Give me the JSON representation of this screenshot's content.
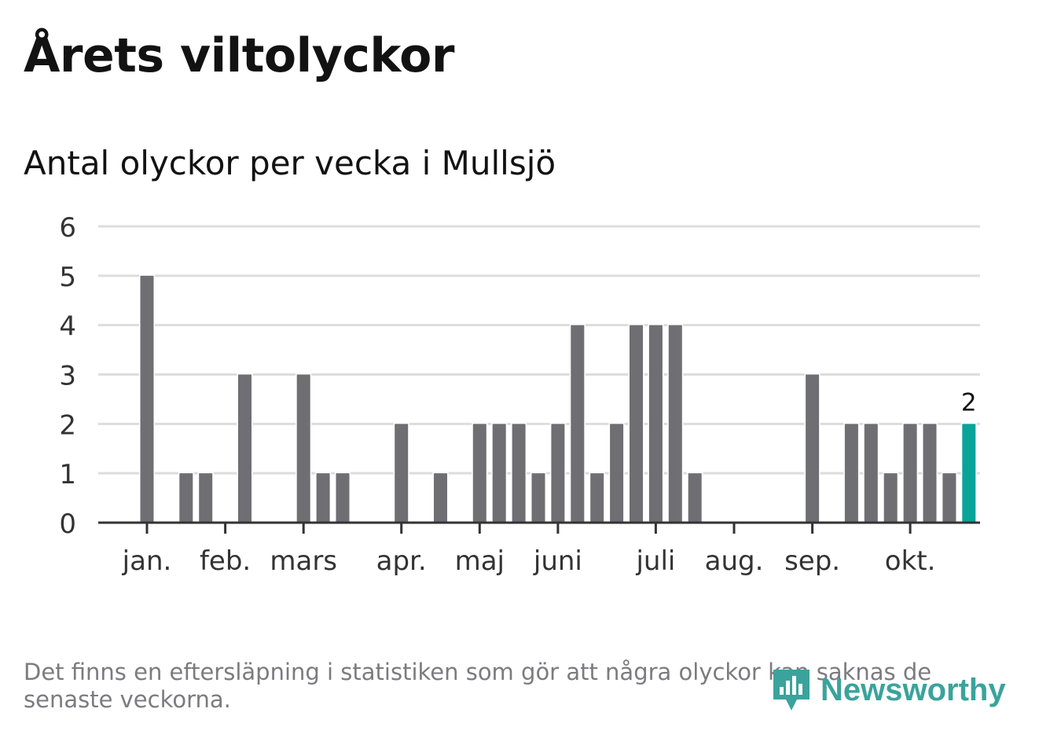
{
  "title": "Årets viltolyckor",
  "subtitle": "Antal olyckor per vecka i Mullsjö",
  "note": "Det finns en eftersläpning i statistiken som gör att några olyckor kan saknas de senaste veckorna.",
  "logo": {
    "text": "Newsworthy",
    "icon": "bar-chart-speech-bubble-icon",
    "color": "#3aa39c"
  },
  "colors": {
    "bar": "#6f6e73",
    "highlight": "#0aa39a",
    "grid": "#dddddd",
    "axis": "#333333"
  },
  "chart_data": {
    "type": "bar",
    "title": "Antal olyckor per vecka i Mullsjö",
    "ylim": [
      0,
      6
    ],
    "yticks": [
      "0",
      "1",
      "2",
      "3",
      "4",
      "5",
      "6"
    ],
    "grid": true,
    "weeks": [
      1,
      2,
      3,
      4,
      5,
      6,
      7,
      8,
      9,
      10,
      11,
      12,
      13,
      14,
      15,
      16,
      17,
      18,
      19,
      20,
      21,
      22,
      23,
      24,
      25,
      26,
      27,
      28,
      29,
      30,
      31,
      32,
      33,
      34,
      35,
      36,
      37,
      38,
      39,
      40,
      41,
      42,
      43
    ],
    "values": [
      5,
      0,
      1,
      1,
      0,
      3,
      0,
      0,
      3,
      1,
      1,
      0,
      0,
      2,
      0,
      1,
      0,
      2,
      2,
      2,
      1,
      2,
      4,
      1,
      2,
      4,
      4,
      4,
      1,
      0,
      0,
      0,
      0,
      0,
      3,
      0,
      2,
      2,
      1,
      2,
      2,
      1,
      2
    ],
    "highlight_index": 42,
    "highlight_label": "2",
    "month_labels": [
      {
        "label": "jan.",
        "week": 1
      },
      {
        "label": "feb.",
        "week": 5
      },
      {
        "label": "mars",
        "week": 9
      },
      {
        "label": "apr.",
        "week": 14
      },
      {
        "label": "maj",
        "week": 18
      },
      {
        "label": "juni",
        "week": 22
      },
      {
        "label": "juli",
        "week": 27
      },
      {
        "label": "aug.",
        "week": 31
      },
      {
        "label": "sep.",
        "week": 35
      },
      {
        "label": "okt.",
        "week": 40
      }
    ]
  }
}
